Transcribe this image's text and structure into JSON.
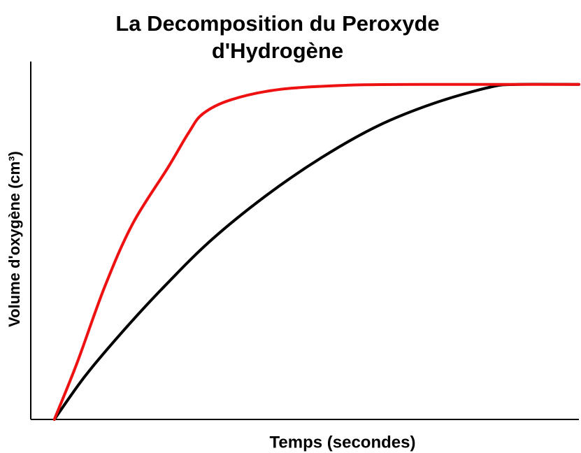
{
  "chart_data": {
    "type": "line",
    "title": "La Decomposition du Peroxyde d'Hydrogène",
    "x_label": "Temps (secondes)",
    "y_label": "Volume d'oxygène (cm³)",
    "xlim": [
      0,
      100
    ],
    "ylim": [
      0,
      100
    ],
    "series": [
      {
        "color": "#000000",
        "x": [
          4.3,
          9.7,
          16.1,
          23.7,
          32.7,
          42.9,
          53.1,
          63.3,
          73.5,
          83.7,
          88.8,
          100
        ],
        "values": [
          0,
          11.7,
          23.4,
          36.1,
          49.8,
          62.5,
          73.2,
          82.0,
          88.3,
          92.8,
          93.6,
          93.6
        ]
      },
      {
        "color": "#ee1111",
        "x": [
          4.3,
          8.4,
          13.5,
          18.6,
          25.0,
          28.8,
          31.4,
          36.5,
          45.4,
          58.2,
          71.0,
          100
        ],
        "values": [
          0,
          15.6,
          37.1,
          54.7,
          70.3,
          80.1,
          85.4,
          89.3,
          92.2,
          93.4,
          93.6,
          93.6
        ]
      }
    ]
  }
}
